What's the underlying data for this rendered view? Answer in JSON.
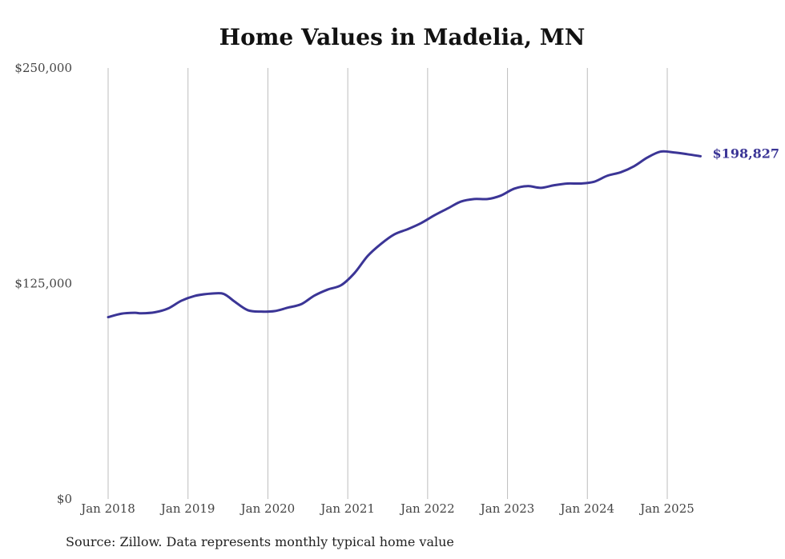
{
  "chart_data": {
    "type": "line",
    "title": "Home Values in Madelia, MN",
    "xlabel": "",
    "ylabel": "",
    "x_tick_labels": [
      "Jan 2018",
      "Jan 2019",
      "Jan 2020",
      "Jan 2021",
      "Jan 2022",
      "Jan 2023",
      "Jan 2024",
      "Jan 2025"
    ],
    "y_tick_labels": [
      "$0",
      "$125,000",
      "$250,000"
    ],
    "y_ticks": [
      0,
      125000,
      250000
    ],
    "ylim": [
      0,
      250000
    ],
    "xlim": [
      "2018-01",
      "2025-06"
    ],
    "grid": "vertical",
    "line_color": "#3b3596",
    "end_label": "$198,827",
    "series": [
      {
        "x": [
          "2018-01",
          "2018-03",
          "2018-05",
          "2018-06",
          "2018-08",
          "2018-10",
          "2018-12",
          "2019-02",
          "2019-04",
          "2019-06",
          "2019-07",
          "2019-08",
          "2019-10",
          "2019-12",
          "2020-02",
          "2020-04",
          "2020-06",
          "2020-08",
          "2020-10",
          "2020-12",
          "2021-02",
          "2021-04",
          "2021-06",
          "2021-08",
          "2021-10",
          "2021-12",
          "2022-02",
          "2022-04",
          "2022-06",
          "2022-08",
          "2022-10",
          "2022-12",
          "2023-02",
          "2023-04",
          "2023-06",
          "2023-08",
          "2023-10",
          "2023-12",
          "2024-02",
          "2024-04",
          "2024-06",
          "2024-08",
          "2024-10",
          "2024-12",
          "2025-02",
          "2025-04",
          "2025-06"
        ],
        "values": [
          105500,
          107500,
          108000,
          107700,
          108300,
          110500,
          115000,
          117800,
          119000,
          119300,
          117500,
          114500,
          109500,
          108700,
          109000,
          111000,
          113000,
          118000,
          121500,
          124000,
          131000,
          141000,
          148000,
          153500,
          156500,
          160000,
          164500,
          168500,
          172500,
          174000,
          174000,
          176000,
          180000,
          181500,
          180500,
          182000,
          183000,
          183000,
          184000,
          187500,
          189500,
          193000,
          198000,
          201500,
          201000,
          200000,
          198827
        ]
      }
    ]
  },
  "source_note": "Source: Zillow. Data represents monthly typical home value"
}
